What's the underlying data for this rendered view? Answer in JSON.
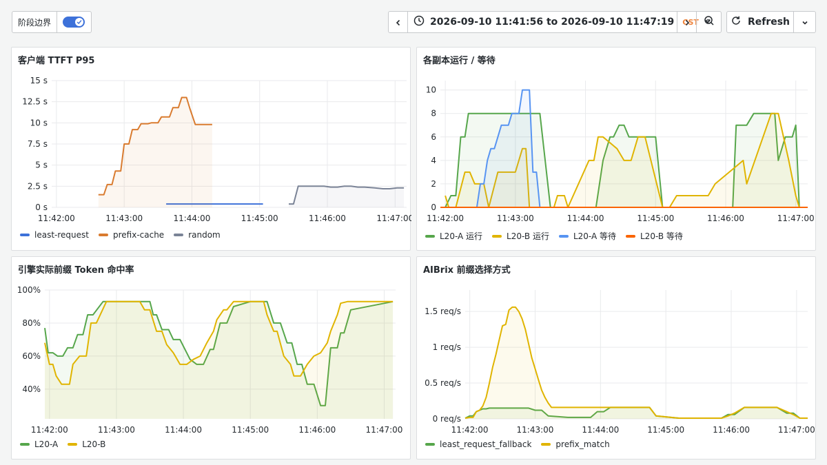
{
  "toolbar": {
    "phase_toggle_label": "阶段边界",
    "phase_toggle_on": true,
    "time_from": "2026-09-10 11:41:56",
    "time_to_word": "to",
    "time_to": "2026-09-10 11:47:19",
    "timezone": "CST",
    "refresh_label": "Refresh",
    "icons": [
      "chevron-left-icon",
      "clock-icon",
      "chevron-down-icon",
      "chevron-right-icon",
      "zoom-out-icon",
      "refresh-icon",
      "chevron-down-icon"
    ]
  },
  "panels": [
    {
      "title": "客户端 TTFT P95",
      "legend": [
        "least-request",
        "prefix-cache",
        "random"
      ]
    },
    {
      "title": "各副本运行 / 等待",
      "legend": [
        "L20-A 运行",
        "L20-B 运行",
        "L20-A 等待",
        "L20-B 等待"
      ]
    },
    {
      "title": "引擎实际前缀 Token 命中率",
      "legend": [
        "L20-A",
        "L20-B"
      ]
    },
    {
      "title": "AIBrix 前缀选择方式",
      "legend": [
        "least_request_fallback",
        "prefix_match"
      ]
    }
  ],
  "chart_data": [
    {
      "type": "line",
      "title": "客户端 TTFT P95",
      "x_ticks": [
        "11:42:00",
        "11:43:00",
        "11:44:00",
        "11:45:00",
        "11:46:00",
        "11:47:00"
      ],
      "y_ticks": [
        "0 s",
        "2.5 s",
        "5 s",
        "7.5 s",
        "10 s",
        "12.5 s",
        "15 s"
      ],
      "xlim": [
        -0.07,
        5.17
      ],
      "ylim": [
        0,
        15
      ],
      "grid": true,
      "legend_position": "bottom-left",
      "series": [
        {
          "name": "least-request",
          "color": "#3d71d9",
          "fill": false,
          "x": [
            1.62,
            3.05
          ],
          "y": [
            0.4,
            0.4
          ]
        },
        {
          "name": "prefix-cache",
          "color": "#d97b2f",
          "fill": true,
          "x": [
            0.62,
            0.7,
            0.75,
            0.82,
            0.87,
            0.95,
            1.0,
            1.07,
            1.12,
            1.2,
            1.25,
            1.35,
            1.4,
            1.5,
            1.55,
            1.67,
            1.72,
            1.8,
            1.85,
            1.92,
            1.97,
            2.05,
            2.1,
            2.22,
            2.3
          ],
          "y": [
            1.5,
            1.5,
            2.7,
            2.7,
            4.3,
            4.3,
            7.5,
            7.5,
            9.2,
            9.2,
            9.9,
            9.9,
            10.0,
            10.0,
            10.7,
            10.7,
            11.8,
            11.8,
            13.0,
            13.0,
            11.7,
            9.8,
            9.8,
            9.8,
            9.8
          ]
        },
        {
          "name": "random",
          "color": "#7a8396",
          "fill": true,
          "x": [
            3.43,
            3.5,
            3.57,
            3.72,
            3.85,
            3.95,
            4.05,
            4.15,
            4.25,
            4.35,
            4.45,
            4.55,
            4.7,
            4.82,
            4.92,
            5.03,
            5.13
          ],
          "y": [
            0.4,
            0.4,
            2.5,
            2.5,
            2.5,
            2.5,
            2.4,
            2.4,
            2.5,
            2.5,
            2.4,
            2.4,
            2.3,
            2.2,
            2.2,
            2.3,
            2.3
          ]
        }
      ]
    },
    {
      "type": "line",
      "title": "各副本运行 / 等待",
      "x_ticks": [
        "11:42:00",
        "11:43:00",
        "11:44:00",
        "11:45:00",
        "11:46:00",
        "11:47:00"
      ],
      "y_ticks": [
        "0",
        "2",
        "4",
        "6",
        "8",
        "10"
      ],
      "xlim": [
        -0.07,
        5.17
      ],
      "ylim": [
        0,
        10.8
      ],
      "grid": true,
      "legend_position": "bottom-left",
      "series": [
        {
          "name": "L20-A 运行",
          "color": "#56a64b",
          "fill": true,
          "x": [
            0.0,
            0.08,
            0.15,
            0.22,
            0.28,
            0.33,
            0.4,
            0.5,
            1.0,
            1.35,
            1.5,
            2.0,
            2.15,
            2.25,
            2.35,
            2.4,
            2.48,
            2.55,
            2.62,
            2.75,
            3.0,
            3.1,
            3.5,
            4.1,
            4.15,
            4.3,
            4.4,
            4.7,
            4.75,
            4.85,
            4.95,
            5.0,
            5.05,
            5.17
          ],
          "y": [
            0,
            1,
            1,
            6,
            6,
            8,
            8,
            8,
            8,
            8,
            0,
            0,
            0,
            4,
            6,
            6,
            7,
            7,
            6,
            6,
            6,
            0,
            0,
            0,
            7,
            7,
            8,
            8,
            4,
            6,
            6,
            7,
            0,
            0
          ]
        },
        {
          "name": "L20-B 运行",
          "color": "#e0b400",
          "fill": true,
          "x": [
            0.0,
            0.05,
            0.15,
            0.28,
            0.35,
            0.42,
            0.55,
            0.62,
            0.75,
            1.0,
            1.1,
            1.15,
            1.2,
            1.3,
            1.55,
            1.6,
            1.7,
            1.75,
            2.05,
            2.12,
            2.18,
            2.25,
            2.45,
            2.55,
            2.65,
            2.75,
            2.85,
            3.1,
            3.2,
            3.3,
            3.75,
            3.85,
            4.25,
            4.3,
            4.65,
            4.75,
            4.9,
            5.0,
            5.05,
            5.17
          ],
          "y": [
            1,
            0,
            0,
            3,
            3,
            2,
            2,
            0,
            3,
            3,
            5,
            5,
            0,
            0,
            0,
            1,
            1,
            0,
            4,
            4,
            6,
            6,
            5,
            4,
            4,
            6,
            6,
            0,
            0,
            1,
            1,
            2,
            4,
            2,
            8,
            8,
            4,
            1,
            0,
            0
          ]
        },
        {
          "name": "L20-A 等待",
          "color": "#5794f2",
          "fill": true,
          "x": [
            0.45,
            0.5,
            0.55,
            0.6,
            0.65,
            0.7,
            0.75,
            0.8,
            0.85,
            0.9,
            0.95,
            1.0,
            1.05,
            1.1,
            1.15,
            1.2,
            1.25,
            1.3,
            1.35,
            1.4,
            1.45
          ],
          "y": [
            0,
            2,
            2,
            4,
            5,
            5,
            6,
            7,
            7,
            7,
            8,
            8,
            8,
            10,
            10,
            10,
            3,
            3,
            0,
            0,
            0
          ]
        },
        {
          "name": "L20-B 等待",
          "color": "#fa6400",
          "fill": false,
          "x": [
            -0.07,
            5.17
          ],
          "y": [
            0,
            0
          ]
        }
      ]
    },
    {
      "type": "line",
      "title": "引擎实际前缀 Token 命中率",
      "x_ticks": [
        "11:42:00",
        "11:43:00",
        "11:44:00",
        "11:45:00",
        "11:46:00",
        "11:47:00"
      ],
      "y_ticks": [
        "40%",
        "60%",
        "80%",
        "100%"
      ],
      "xlim": [
        -0.07,
        5.17
      ],
      "ylim": [
        22,
        100
      ],
      "grid": true,
      "legend_position": "bottom-left",
      "series": [
        {
          "name": "L20-A",
          "color": "#56a64b",
          "fill": true,
          "x": [
            -0.07,
            -0.02,
            0.05,
            0.12,
            0.2,
            0.27,
            0.35,
            0.42,
            0.5,
            0.57,
            0.65,
            0.8,
            1.0,
            1.2,
            1.35,
            1.5,
            1.55,
            1.6,
            1.68,
            1.78,
            1.85,
            1.95,
            2.05,
            2.1,
            2.2,
            2.3,
            2.4,
            2.45,
            2.55,
            2.65,
            2.75,
            3.0,
            3.15,
            3.25,
            3.35,
            3.45,
            3.55,
            3.62,
            3.7,
            3.77,
            3.85,
            3.95,
            4.05,
            4.12,
            4.2,
            4.3,
            4.35,
            4.4,
            4.5,
            5.13
          ],
          "y": [
            77,
            62,
            62,
            60,
            60,
            65,
            65,
            73,
            73,
            85,
            85,
            93,
            93,
            93,
            93,
            93,
            85,
            85,
            76,
            76,
            70,
            70,
            62,
            58,
            55,
            55,
            64,
            64,
            80,
            80,
            90,
            93,
            93,
            93,
            80,
            80,
            68,
            68,
            55,
            55,
            43,
            43,
            30,
            30,
            65,
            65,
            74,
            74,
            88,
            93
          ]
        },
        {
          "name": "L20-B",
          "color": "#e0b400",
          "fill": true,
          "x": [
            -0.07,
            0.0,
            0.05,
            0.1,
            0.18,
            0.25,
            0.3,
            0.35,
            0.45,
            0.55,
            0.62,
            0.7,
            0.85,
            1.0,
            1.2,
            1.35,
            1.42,
            1.5,
            1.6,
            1.68,
            1.75,
            1.85,
            1.95,
            2.05,
            2.15,
            2.25,
            2.35,
            2.45,
            2.5,
            2.6,
            2.65,
            2.75,
            2.85,
            3.0,
            3.2,
            3.25,
            3.35,
            3.4,
            3.5,
            3.6,
            3.65,
            3.75,
            3.85,
            3.95,
            4.05,
            4.15,
            4.2,
            4.3,
            4.35,
            4.45,
            5.13
          ],
          "y": [
            68,
            55,
            55,
            48,
            43,
            43,
            43,
            55,
            60,
            60,
            80,
            80,
            93,
            93,
            93,
            93,
            88,
            88,
            75,
            75,
            67,
            62,
            55,
            55,
            58,
            60,
            68,
            75,
            82,
            88,
            88,
            93,
            93,
            93,
            93,
            85,
            75,
            75,
            60,
            55,
            48,
            48,
            55,
            60,
            62,
            68,
            75,
            85,
            92,
            93,
            93
          ]
        }
      ]
    },
    {
      "type": "line",
      "title": "AIBrix 前缀选择方式",
      "x_ticks": [
        "11:42:00",
        "11:43:00",
        "11:44:00",
        "11:45:00",
        "11:46:00",
        "11:47:00"
      ],
      "y_ticks": [
        "0 req/s",
        "0.5 req/s",
        "1 req/s",
        "1.5 req/s"
      ],
      "xlim": [
        -0.07,
        5.17
      ],
      "ylim": [
        0,
        1.8
      ],
      "grid": true,
      "legend_position": "bottom-left",
      "series": [
        {
          "name": "least_request_fallback",
          "color": "#56a64b",
          "fill": true,
          "x": [
            -0.07,
            0.0,
            0.05,
            0.1,
            0.15,
            0.2,
            0.25,
            0.3,
            0.5,
            0.7,
            0.8,
            0.9,
            1.0,
            1.1,
            1.2,
            1.5,
            1.7,
            1.85,
            1.95,
            2.05,
            2.15,
            2.4,
            2.65,
            2.75,
            2.85,
            3.2,
            3.4,
            3.75,
            3.85,
            3.95,
            4.05,
            4.2,
            4.3,
            4.5,
            4.6,
            4.7,
            4.85,
            4.95,
            5.05,
            5.17
          ],
          "y": [
            0.01,
            0.04,
            0.04,
            0.1,
            0.12,
            0.14,
            0.14,
            0.15,
            0.15,
            0.15,
            0.15,
            0.15,
            0.12,
            0.12,
            0.04,
            0.02,
            0.02,
            0.02,
            0.1,
            0.1,
            0.16,
            0.16,
            0.16,
            0.16,
            0.04,
            0.01,
            0.01,
            0.01,
            0.01,
            0.06,
            0.06,
            0.16,
            0.16,
            0.16,
            0.16,
            0.16,
            0.08,
            0.08,
            0.01,
            0.01
          ]
        },
        {
          "name": "prefix_match",
          "color": "#e0b400",
          "fill": true,
          "x": [
            -0.07,
            0.0,
            0.05,
            0.1,
            0.15,
            0.2,
            0.25,
            0.3,
            0.35,
            0.4,
            0.45,
            0.5,
            0.55,
            0.6,
            0.65,
            0.7,
            0.75,
            0.8,
            0.85,
            0.9,
            0.95,
            1.0,
            1.05,
            1.1,
            1.15,
            1.2,
            1.25,
            1.3,
            1.35,
            1.4,
            1.45,
            1.5,
            1.55,
            1.6,
            1.65,
            1.7,
            1.75,
            1.8,
            1.85,
            2.1,
            2.65,
            2.75,
            2.85,
            3.2,
            3.4,
            3.75,
            3.85,
            3.95,
            4.05,
            4.2,
            4.35,
            4.55,
            4.7,
            4.85,
            4.95,
            5.05,
            5.17
          ],
          "y": [
            0.01,
            0.02,
            0.02,
            0.1,
            0.12,
            0.18,
            0.3,
            0.5,
            0.72,
            0.9,
            1.1,
            1.3,
            1.32,
            1.52,
            1.56,
            1.56,
            1.5,
            1.4,
            1.25,
            1.05,
            0.85,
            0.7,
            0.55,
            0.4,
            0.3,
            0.22,
            0.16,
            0.16,
            0.16,
            0.16,
            0.16,
            0.16,
            0.16,
            0.16,
            0.16,
            0.16,
            0.16,
            0.16,
            0.16,
            0.16,
            0.16,
            0.16,
            0.04,
            0.01,
            0.01,
            0.01,
            0.01,
            0.04,
            0.08,
            0.16,
            0.16,
            0.16,
            0.16,
            0.1,
            0.06,
            0.01,
            0.01
          ]
        }
      ]
    }
  ]
}
